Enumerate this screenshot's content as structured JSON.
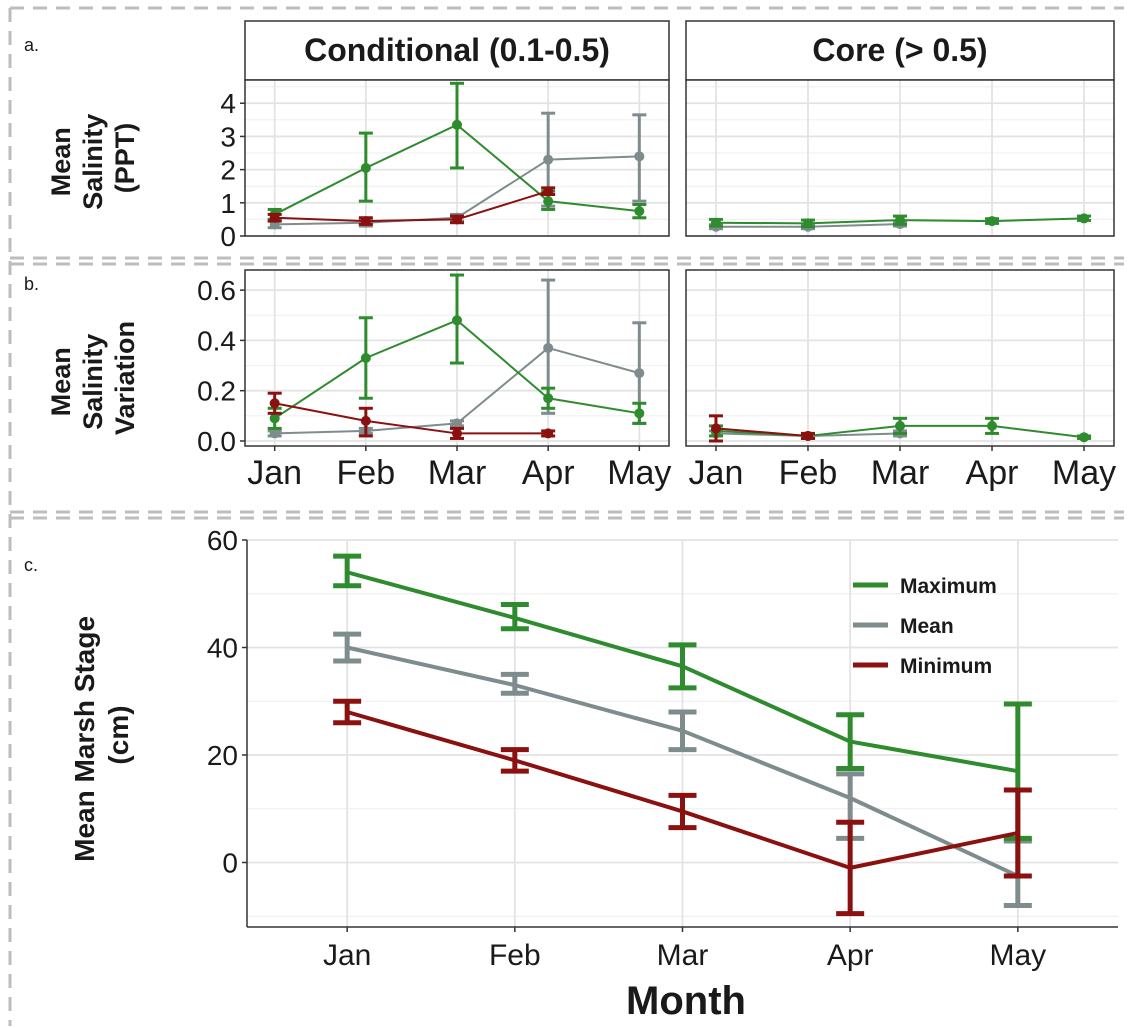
{
  "panel_labels": {
    "a": "a.",
    "b": "b.",
    "c": "c."
  },
  "strips": {
    "left": "Conditional (0.1-0.5)",
    "right": "Core (> 0.5)"
  },
  "ylabels": {
    "a": [
      "Mean",
      "Salinity",
      "(PPT)"
    ],
    "b": [
      "Mean",
      "Salinity",
      "Variation"
    ],
    "c": [
      "Mean Marsh Stage",
      "(cm)"
    ]
  },
  "xlabel_c": "Month",
  "legend": [
    {
      "key": "max",
      "label": "Maximum",
      "color": "#2e8b2e"
    },
    {
      "key": "mean",
      "label": "Mean",
      "color": "#7f8c8d"
    },
    {
      "key": "min",
      "label": "Minimum",
      "color": "#8b1010"
    }
  ],
  "chart_data": [
    {
      "id": "a-left",
      "type": "line",
      "panel": "a",
      "facet": "Conditional (0.1-0.5)",
      "categories": [
        "Jan",
        "Feb",
        "Mar",
        "Apr",
        "May"
      ],
      "ylim": [
        0,
        4.7
      ],
      "yticks": [
        0,
        1,
        2,
        3,
        4
      ],
      "series": [
        {
          "key": "max",
          "values": [
            0.65,
            2.05,
            3.35,
            1.05,
            0.75
          ],
          "lower": [
            0.5,
            1.05,
            2.05,
            0.8,
            0.55
          ],
          "upper": [
            0.8,
            3.1,
            4.6,
            1.35,
            0.95
          ]
        },
        {
          "key": "mean",
          "values": [
            0.35,
            0.4,
            0.55,
            2.3,
            2.4
          ],
          "lower": [
            0.25,
            0.3,
            0.45,
            0.9,
            1.05
          ],
          "upper": [
            0.45,
            0.5,
            0.65,
            3.7,
            3.65
          ]
        },
        {
          "key": "min",
          "values": [
            0.55,
            0.45,
            0.5,
            1.35,
            null
          ],
          "lower": [
            0.45,
            0.35,
            0.4,
            1.25,
            null
          ],
          "upper": [
            0.65,
            0.55,
            0.6,
            1.45,
            null
          ]
        }
      ]
    },
    {
      "id": "a-right",
      "type": "line",
      "panel": "a",
      "facet": "Core (> 0.5)",
      "categories": [
        "Jan",
        "Feb",
        "Mar",
        "Apr",
        "May"
      ],
      "ylim": [
        0,
        4.7
      ],
      "yticks": [
        0,
        1,
        2,
        3,
        4
      ],
      "series": [
        {
          "key": "max",
          "values": [
            0.4,
            0.38,
            0.48,
            0.45,
            0.53
          ],
          "lower": [
            0.3,
            0.28,
            0.35,
            0.38,
            0.47
          ],
          "upper": [
            0.5,
            0.48,
            0.6,
            0.52,
            0.6
          ]
        },
        {
          "key": "mean",
          "values": [
            0.28,
            0.28,
            0.36,
            null,
            null
          ],
          "lower": [
            0.22,
            0.22,
            0.3,
            null,
            null
          ],
          "upper": [
            0.34,
            0.34,
            0.42,
            null,
            null
          ]
        }
      ]
    },
    {
      "id": "b-left",
      "type": "line",
      "panel": "b",
      "facet": "Conditional (0.1-0.5)",
      "categories": [
        "Jan",
        "Feb",
        "Mar",
        "Apr",
        "May"
      ],
      "ylim": [
        -0.02,
        0.68
      ],
      "yticks": [
        0.0,
        0.2,
        0.4,
        0.6
      ],
      "ytick_labels": [
        "0.0",
        "0.2",
        "0.4",
        "0.6"
      ],
      "series": [
        {
          "key": "max",
          "values": [
            0.09,
            0.33,
            0.48,
            0.17,
            0.11
          ],
          "lower": [
            0.05,
            0.17,
            0.31,
            0.13,
            0.07
          ],
          "upper": [
            0.13,
            0.49,
            0.66,
            0.21,
            0.15
          ]
        },
        {
          "key": "mean",
          "values": [
            0.03,
            0.04,
            0.07,
            0.37,
            0.27
          ],
          "lower": [
            0.02,
            0.03,
            0.06,
            0.11,
            0.07
          ],
          "upper": [
            0.04,
            0.05,
            0.08,
            0.64,
            0.47
          ]
        },
        {
          "key": "min",
          "values": [
            0.15,
            0.08,
            0.03,
            0.03,
            null
          ],
          "lower": [
            0.11,
            0.02,
            0.01,
            0.02,
            null
          ],
          "upper": [
            0.19,
            0.13,
            0.05,
            0.04,
            null
          ]
        }
      ]
    },
    {
      "id": "b-right",
      "type": "line",
      "panel": "b",
      "facet": "Core (> 0.5)",
      "categories": [
        "Jan",
        "Feb",
        "Mar",
        "Apr",
        "May"
      ],
      "ylim": [
        -0.02,
        0.68
      ],
      "yticks": [
        0.0,
        0.2,
        0.4,
        0.6
      ],
      "ytick_labels": [
        "0.0",
        "0.2",
        "0.4",
        "0.6"
      ],
      "series": [
        {
          "key": "max",
          "values": [
            0.04,
            0.02,
            0.06,
            0.06,
            0.015
          ],
          "lower": [
            0.02,
            0.01,
            0.03,
            0.03,
            0.01
          ],
          "upper": [
            0.06,
            0.03,
            0.09,
            0.09,
            0.02
          ]
        },
        {
          "key": "mean",
          "values": [
            0.03,
            0.02,
            0.03,
            null,
            null
          ],
          "lower": [
            0.02,
            0.015,
            0.02,
            null,
            null
          ],
          "upper": [
            0.04,
            0.025,
            0.04,
            null,
            null
          ]
        },
        {
          "key": "min",
          "values": [
            0.05,
            0.02,
            null,
            null,
            null
          ],
          "lower": [
            0.0,
            0.01,
            null,
            null,
            null
          ],
          "upper": [
            0.1,
            0.03,
            null,
            null,
            null
          ]
        }
      ]
    },
    {
      "id": "c",
      "type": "line",
      "panel": "c",
      "categories": [
        "Jan",
        "Feb",
        "Mar",
        "Apr",
        "May"
      ],
      "ylim": [
        -12,
        60
      ],
      "yticks": [
        0,
        20,
        40,
        60
      ],
      "xlabel": "Month",
      "ylabel": "Mean Marsh Stage (cm)",
      "legend_position": "top-right",
      "series": [
        {
          "key": "max",
          "name": "Maximum",
          "values": [
            54.0,
            45.5,
            36.5,
            22.5,
            17.0
          ],
          "lower": [
            51.5,
            43.5,
            32.5,
            17.5,
            4.5
          ],
          "upper": [
            57.0,
            48.0,
            40.5,
            27.5,
            29.5
          ]
        },
        {
          "key": "mean",
          "name": "Mean",
          "values": [
            40.0,
            33.0,
            24.5,
            12.0,
            -2.5
          ],
          "lower": [
            37.5,
            31.5,
            21.0,
            4.5,
            -8.0
          ],
          "upper": [
            42.5,
            35.0,
            28.0,
            16.5,
            4.0
          ]
        },
        {
          "key": "min",
          "name": "Minimum",
          "values": [
            28.0,
            19.0,
            9.5,
            -1.0,
            5.5
          ],
          "lower": [
            26.0,
            17.0,
            6.5,
            -9.5,
            -2.5
          ],
          "upper": [
            30.0,
            21.0,
            12.5,
            7.5,
            13.5
          ]
        }
      ]
    }
  ]
}
